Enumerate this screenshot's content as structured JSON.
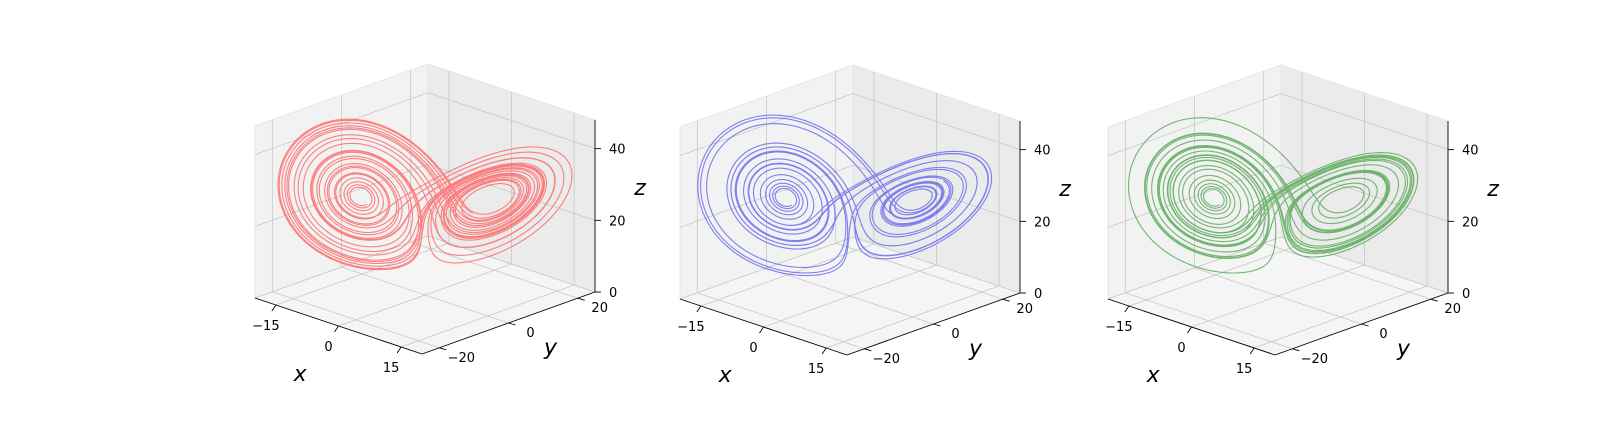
{
  "chart_data": [
    {
      "type": "line",
      "projection": "3d",
      "series_color": "#ff6b6b",
      "xlabel": "x",
      "ylabel": "y",
      "zlabel": "z",
      "x_ticks": [
        "−15",
        "0",
        "15"
      ],
      "y_ticks": [
        "−20",
        "0",
        "20"
      ],
      "z_ticks": [
        "0",
        "20",
        "40"
      ],
      "xlim": [
        -20,
        20
      ],
      "ylim": [
        -25,
        25
      ],
      "zlim": [
        0,
        48
      ],
      "grid": true,
      "lorenz": {
        "sigma": 10,
        "rho": 28,
        "beta": 2.6667,
        "x0": [
          0.0,
          1.0,
          1.05
        ],
        "dt": 0.005,
        "skip": 200,
        "steps": 6000
      }
    },
    {
      "type": "line",
      "projection": "3d",
      "series_color": "#6b6bf0",
      "xlabel": "x",
      "ylabel": "y",
      "zlabel": "z",
      "x_ticks": [
        "−15",
        "0",
        "15"
      ],
      "y_ticks": [
        "−20",
        "0",
        "20"
      ],
      "z_ticks": [
        "0",
        "20",
        "40"
      ],
      "xlim": [
        -20,
        20
      ],
      "ylim": [
        -25,
        25
      ],
      "zlim": [
        0,
        48
      ],
      "grid": true,
      "lorenz": {
        "sigma": 10,
        "rho": 28,
        "beta": 2.6667,
        "x0": [
          0.0,
          1.0,
          1.15
        ],
        "dt": 0.005,
        "skip": 200,
        "steps": 5000
      }
    },
    {
      "type": "line",
      "projection": "3d",
      "series_color": "#5aaa5a",
      "xlabel": "x",
      "ylabel": "y",
      "zlabel": "z",
      "x_ticks": [
        "−15",
        "0",
        "15"
      ],
      "y_ticks": [
        "−20",
        "0",
        "20"
      ],
      "z_ticks": [
        "0",
        "20",
        "40"
      ],
      "xlim": [
        -20,
        20
      ],
      "ylim": [
        -25,
        25
      ],
      "zlim": [
        0,
        48
      ],
      "grid": true,
      "lorenz": {
        "sigma": 10,
        "rho": 28,
        "beta": 2.6667,
        "x0": [
          0.0,
          1.0,
          1.25
        ],
        "dt": 0.005,
        "skip": 200,
        "steps": 5500
      }
    }
  ]
}
